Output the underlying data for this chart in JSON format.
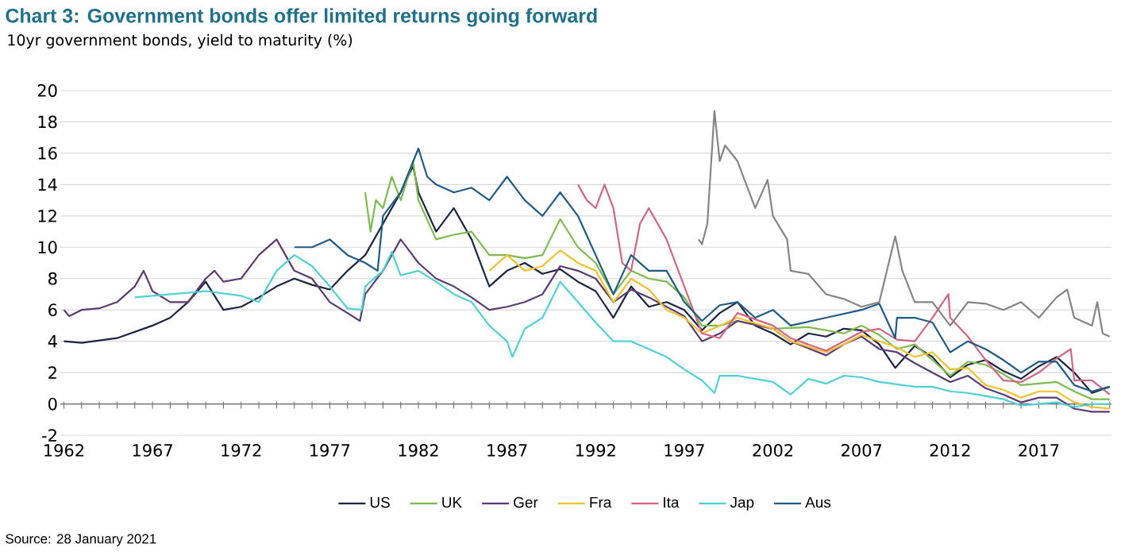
{
  "chart_data": {
    "type": "line",
    "title": "Chart 3: Government bonds offer limited returns going forward",
    "ylabel": "10yr government bonds, yield to maturity (%)",
    "annotations": [
      "Source: 28 January 2021"
    ],
    "xlim": [
      1961.8,
      2021.1
    ],
    "ylim": [
      -2,
      20
    ],
    "xticks": [
      1962,
      {
        "value": 1963,
        "label": null
      },
      {
        "value": 1964,
        "label": null
      },
      {
        "value": 1965,
        "label": null
      },
      {
        "value": 1966,
        "label": null
      },
      1967,
      {
        "value": 1968,
        "label": null
      },
      {
        "value": 1969,
        "label": null
      },
      {
        "value": 1970,
        "label": null
      },
      {
        "value": 1971,
        "label": null
      },
      1972,
      {
        "value": 1973,
        "label": null
      },
      {
        "value": 1974,
        "label": null
      },
      {
        "value": 1975,
        "label": null
      },
      {
        "value": 1976,
        "label": null
      },
      1977,
      {
        "value": 1978,
        "label": null
      },
      {
        "value": 1979,
        "label": null
      },
      {
        "value": 1980,
        "label": null
      },
      {
        "value": 1981,
        "label": null
      },
      1982,
      {
        "value": 1983,
        "label": null
      },
      {
        "value": 1984,
        "label": null
      },
      {
        "value": 1985,
        "label": null
      },
      {
        "value": 1986,
        "label": null
      },
      1987,
      {
        "value": 1988,
        "label": null
      },
      {
        "value": 1989,
        "label": null
      },
      {
        "value": 1990,
        "label": null
      },
      {
        "value": 1991,
        "label": null
      },
      1992,
      {
        "value": 1993,
        "label": null
      },
      {
        "value": 1994,
        "label": null
      },
      {
        "value": 1995,
        "label": null
      },
      {
        "value": 1996,
        "label": null
      },
      1997,
      {
        "value": 1998,
        "label": null
      },
      {
        "value": 1999,
        "label": null
      },
      {
        "value": 2000,
        "label": null
      },
      {
        "value": 2001,
        "label": null
      },
      2002,
      {
        "value": 2003,
        "label": null
      },
      {
        "value": 2004,
        "label": null
      },
      {
        "value": 2005,
        "label": null
      },
      {
        "value": 2006,
        "label": null
      },
      2007,
      {
        "value": 2008,
        "label": null
      },
      {
        "value": 2009,
        "label": null
      },
      {
        "value": 2010,
        "label": null
      },
      {
        "value": 2011,
        "label": null
      },
      2012,
      {
        "value": 2013,
        "label": null
      },
      {
        "value": 2014,
        "label": null
      },
      {
        "value": 2015,
        "label": null
      },
      {
        "value": 2016,
        "label": null
      },
      2017,
      {
        "value": 2018,
        "label": null
      },
      {
        "value": 2019,
        "label": null
      },
      {
        "value": 2020,
        "label": null
      },
      {
        "value": 2021,
        "label": null
      }
    ],
    "yticks": [
      -2,
      0,
      2,
      4,
      6,
      8,
      10,
      12,
      14,
      16,
      18,
      20
    ],
    "grid": "y",
    "legend": "bottom",
    "marker": "none",
    "line_style": "solid",
    "series": [
      {
        "name": "US",
        "color": "#1c2541",
        "x": [
          1962,
          1963,
          1965,
          1966,
          1967,
          1968,
          1969,
          1970,
          1971,
          1972,
          1973,
          1974,
          1975,
          1976,
          1977,
          1978,
          1979,
          1980,
          1981,
          1981.7,
          1982,
          1983,
          1984,
          1985,
          1986,
          1987,
          1988,
          1989,
          1990,
          1991,
          1992,
          1993,
          1994,
          1995,
          1996,
          1997,
          1998,
          1999,
          2000,
          2001,
          2002,
          2003,
          2004,
          2005,
          2006,
          2007,
          2008,
          2008.9,
          2010,
          2011,
          2012,
          2013,
          2014,
          2015,
          2016,
          2017,
          2018,
          2019,
          2020,
          2021
        ],
        "values": [
          4.0,
          3.9,
          4.2,
          4.6,
          5.0,
          5.5,
          6.5,
          7.8,
          6.0,
          6.2,
          6.8,
          7.5,
          8.0,
          7.6,
          7.3,
          8.5,
          9.5,
          11.5,
          13.5,
          15.2,
          13.5,
          11.0,
          12.5,
          10.5,
          7.5,
          8.5,
          9.0,
          8.3,
          8.6,
          7.8,
          7.2,
          5.5,
          7.5,
          6.2,
          6.5,
          6.0,
          4.7,
          5.8,
          6.5,
          5.0,
          4.5,
          3.8,
          4.5,
          4.3,
          4.8,
          4.7,
          3.8,
          2.3,
          3.7,
          3.0,
          1.7,
          2.5,
          2.8,
          2.1,
          1.6,
          2.4,
          3.0,
          2.0,
          0.7,
          1.1
        ]
      },
      {
        "name": "UK",
        "color": "#7dbb4f",
        "x": [
          1979,
          1979.3,
          1979.6,
          1980,
          1980.5,
          1981,
          1981.7,
          1982,
          1983,
          1984,
          1985,
          1986,
          1987,
          1988,
          1989,
          1990,
          1991,
          1992,
          1993,
          1994,
          1995,
          1996,
          1997,
          1998,
          1999,
          2000,
          2002,
          2004,
          2006,
          2007,
          2008,
          2009,
          2010,
          2011,
          2012,
          2013,
          2014,
          2015,
          2016,
          2017,
          2018,
          2019,
          2020,
          2021
        ],
        "values": [
          13.5,
          11.0,
          13.0,
          12.5,
          14.5,
          13.0,
          15.5,
          13.0,
          10.5,
          10.8,
          11.0,
          9.5,
          9.5,
          9.3,
          9.5,
          11.8,
          10.0,
          9.0,
          7.0,
          8.5,
          8.0,
          7.8,
          6.8,
          5.0,
          5.0,
          5.3,
          4.8,
          4.9,
          4.5,
          5.0,
          4.4,
          3.5,
          3.8,
          2.8,
          1.8,
          2.7,
          2.5,
          1.9,
          1.2,
          1.3,
          1.4,
          0.8,
          0.3,
          0.3
        ]
      },
      {
        "name": "Ger",
        "color": "#5c3b72",
        "x": [
          1962,
          1962.3,
          1963,
          1964,
          1965,
          1966,
          1966.5,
          1967,
          1968,
          1969,
          1970,
          1970.5,
          1971,
          1972,
          1973,
          1974,
          1975,
          1976,
          1977,
          1978,
          1978.7,
          1979,
          1980,
          1981,
          1982,
          1983,
          1984,
          1985,
          1986,
          1987,
          1988,
          1989,
          1990,
          1991,
          1992,
          1993,
          1994,
          1995,
          1996,
          1997,
          1998,
          1999,
          2000,
          2002,
          2003,
          2005,
          2006,
          2007,
          2008,
          2009,
          2010,
          2011,
          2012,
          2013,
          2014,
          2015,
          2016,
          2017,
          2018,
          2019,
          2020,
          2021
        ],
        "values": [
          6.0,
          5.6,
          6.0,
          6.1,
          6.5,
          7.5,
          8.5,
          7.2,
          6.5,
          6.5,
          8.0,
          8.5,
          7.8,
          8.0,
          9.5,
          10.5,
          8.5,
          8.0,
          6.5,
          5.8,
          5.3,
          7.0,
          8.5,
          10.5,
          9.0,
          8.0,
          7.5,
          6.8,
          6.0,
          6.2,
          6.5,
          7.0,
          8.8,
          8.5,
          8.0,
          6.5,
          7.3,
          6.8,
          6.2,
          5.6,
          4.0,
          4.5,
          5.3,
          4.8,
          4.0,
          3.1,
          3.8,
          4.3,
          3.5,
          3.3,
          2.6,
          2.0,
          1.4,
          1.8,
          1.0,
          0.6,
          0.1,
          0.4,
          0.4,
          -0.3,
          -0.5,
          -0.5
        ]
      },
      {
        "name": "Fra",
        "color": "#f2c12e",
        "x": [
          1986,
          1987,
          1988,
          1989,
          1990,
          1991,
          1992,
          1993,
          1994,
          1995,
          1996,
          1997,
          1998,
          1999,
          2000,
          2002,
          2003,
          2005,
          2006,
          2007,
          2008,
          2009,
          2010,
          2011,
          2012,
          2013,
          2014,
          2015,
          2016,
          2017,
          2018,
          2019,
          2020,
          2021
        ],
        "values": [
          8.5,
          9.5,
          8.5,
          8.8,
          9.8,
          9.0,
          8.5,
          6.5,
          8.0,
          7.3,
          6.0,
          5.5,
          4.5,
          5.0,
          5.5,
          4.8,
          4.0,
          3.3,
          3.8,
          4.4,
          4.0,
          3.6,
          3.0,
          3.3,
          2.2,
          2.3,
          1.2,
          0.9,
          0.4,
          0.8,
          0.8,
          0.1,
          -0.2,
          -0.3
        ]
      },
      {
        "name": "Ita",
        "color": "#d36582",
        "x": [
          1991,
          1991.5,
          1992,
          1992.5,
          1993,
          1993.5,
          1994,
          1994.5,
          1995,
          1996,
          1997,
          1998,
          1999,
          2000,
          2002,
          2003,
          2005,
          2006,
          2007,
          2008,
          2009,
          2010,
          2011,
          2011.9,
          2012,
          2013,
          2014,
          2015,
          2016,
          2017,
          2018,
          2018.8,
          2019,
          2020,
          2021
        ],
        "values": [
          14.0,
          13.0,
          12.5,
          14.0,
          12.5,
          9.0,
          8.5,
          11.5,
          12.5,
          10.5,
          7.5,
          4.5,
          4.2,
          5.8,
          5.0,
          4.2,
          3.4,
          4.0,
          4.6,
          4.8,
          4.1,
          4.0,
          5.5,
          7.0,
          5.5,
          4.3,
          2.8,
          1.5,
          1.4,
          2.0,
          2.9,
          3.5,
          1.5,
          1.5,
          0.6
        ]
      },
      {
        "name": "Jap",
        "color": "#4fcfd6",
        "x": [
          1966,
          1968,
          1970,
          1972,
          1973,
          1974,
          1975,
          1976,
          1977,
          1978,
          1978.8,
          1979,
          1980,
          1980.5,
          1981,
          1982,
          1983,
          1984,
          1985,
          1986,
          1987,
          1987.3,
          1988,
          1989,
          1990,
          1991,
          1992,
          1993,
          1994,
          1995,
          1996,
          1997,
          1998,
          1998.7,
          1999,
          2000,
          2002,
          2003,
          2004,
          2005,
          2006,
          2007,
          2008,
          2010,
          2011,
          2012,
          2013,
          2014,
          2015,
          2016,
          2017,
          2018,
          2019,
          2020,
          2021
        ],
        "values": [
          6.8,
          7.0,
          7.2,
          6.9,
          6.5,
          8.5,
          9.5,
          8.8,
          7.5,
          6.1,
          6.0,
          7.5,
          8.5,
          9.7,
          8.2,
          8.5,
          7.8,
          7.0,
          6.5,
          5.0,
          4.0,
          3.0,
          4.8,
          5.5,
          7.8,
          6.5,
          5.2,
          4.0,
          4.0,
          3.5,
          3.0,
          2.2,
          1.5,
          0.7,
          1.8,
          1.8,
          1.4,
          0.6,
          1.6,
          1.3,
          1.8,
          1.7,
          1.4,
          1.1,
          1.1,
          0.8,
          0.7,
          0.5,
          0.3,
          -0.1,
          0.0,
          0.1,
          -0.2,
          0.0,
          0.0
        ]
      },
      {
        "name": "Aus",
        "color": "#1f5b85",
        "x": [
          1975,
          1976,
          1977,
          1978,
          1979,
          1979.7,
          1980,
          1981,
          1982,
          1982.5,
          1983,
          1984,
          1985,
          1986,
          1987,
          1988,
          1989,
          1990,
          1991,
          1992,
          1993,
          1994,
          1995,
          1996,
          1997,
          1998,
          1999,
          2000,
          2001,
          2002,
          2003,
          2005,
          2007,
          2008,
          2008.9,
          2009,
          2010,
          2011,
          2012,
          2013,
          2014,
          2015,
          2016,
          2017,
          2018,
          2019,
          2020,
          2021
        ],
        "values": [
          10.0,
          10.0,
          10.5,
          9.5,
          9.0,
          8.5,
          12.0,
          13.5,
          16.3,
          14.5,
          14.0,
          13.5,
          13.8,
          13.0,
          14.5,
          13.0,
          12.0,
          13.5,
          12.0,
          9.5,
          7.0,
          9.5,
          8.5,
          8.5,
          6.5,
          5.3,
          6.3,
          6.5,
          5.5,
          6.0,
          5.0,
          5.5,
          6.0,
          6.4,
          4.2,
          5.5,
          5.5,
          5.2,
          3.3,
          4.0,
          3.5,
          2.8,
          2.0,
          2.7,
          2.7,
          1.2,
          0.8,
          1.1
        ]
      },
      {
        "color": "#858585",
        "x": [
          1997.8,
          1998,
          1998.3,
          1998.7,
          1999,
          1999.3,
          2000,
          2001,
          2001.7,
          2002,
          2002.8,
          2003,
          2004,
          2005,
          2006,
          2007,
          2008,
          2008.9,
          2009.3,
          2010,
          2011,
          2012,
          2013,
          2014,
          2015,
          2016,
          2017,
          2018,
          2018.6,
          2019,
          2020,
          2020.3,
          2020.6,
          2021
        ],
        "values": [
          10.5,
          10.2,
          11.5,
          18.7,
          15.5,
          16.5,
          15.5,
          12.5,
          14.3,
          12.0,
          10.5,
          8.5,
          8.3,
          7.0,
          6.7,
          6.2,
          6.5,
          10.7,
          8.5,
          6.5,
          6.5,
          5.0,
          6.5,
          6.4,
          6.0,
          6.5,
          5.5,
          6.8,
          7.3,
          5.5,
          5.0,
          6.5,
          4.5,
          4.3
        ]
      }
    ]
  }
}
